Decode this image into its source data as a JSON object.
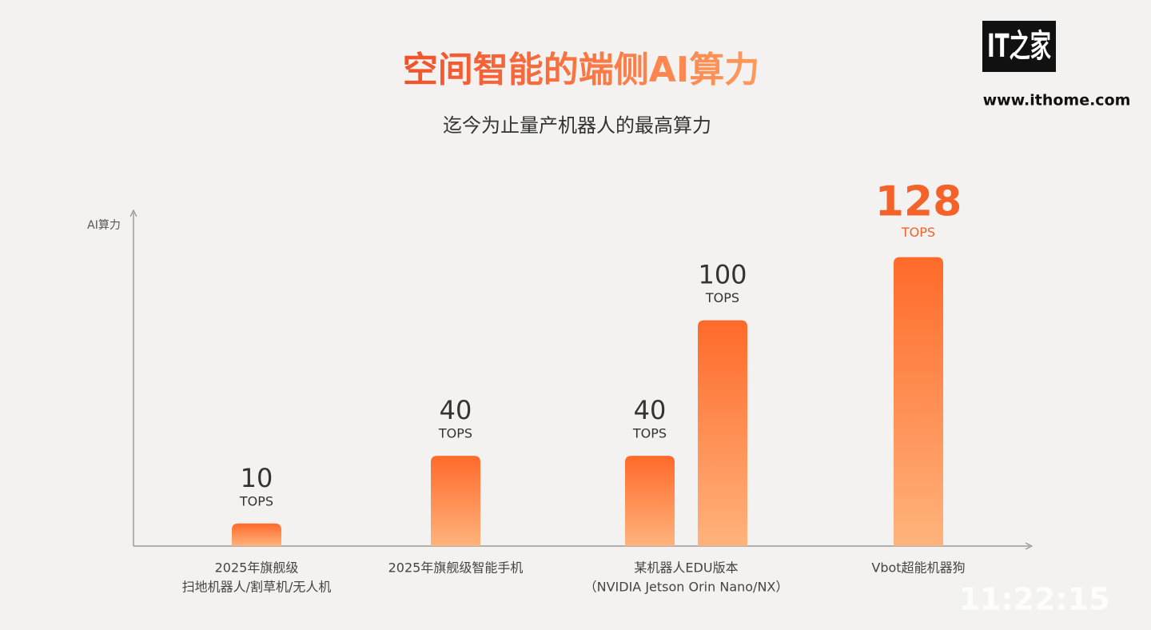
{
  "chart_data": {
    "type": "bar",
    "title": "空间智能的端侧AI算力",
    "subtitle": "迄今为止量产机器人的最高算力",
    "y_label": "AI算力",
    "unit": "TOPS",
    "categories": [
      [
        "2025年旗舰级",
        "扫地机器人/割草机/无人机"
      ],
      [
        "2025年旗舰级智能手机"
      ],
      [
        "某机器人EDU版本",
        "（NVIDIA Jetson Orin Nano/NX）"
      ],
      null,
      [
        "Vbot超能机器狗"
      ]
    ],
    "values": [
      10,
      40,
      40,
      100,
      128
    ],
    "color": "#ff6a2a",
    "ylim": [
      0,
      147
    ]
  },
  "watermark": {
    "logo": "IT之家",
    "url": "www.ithome.com"
  },
  "timestamp": "11:22:15"
}
